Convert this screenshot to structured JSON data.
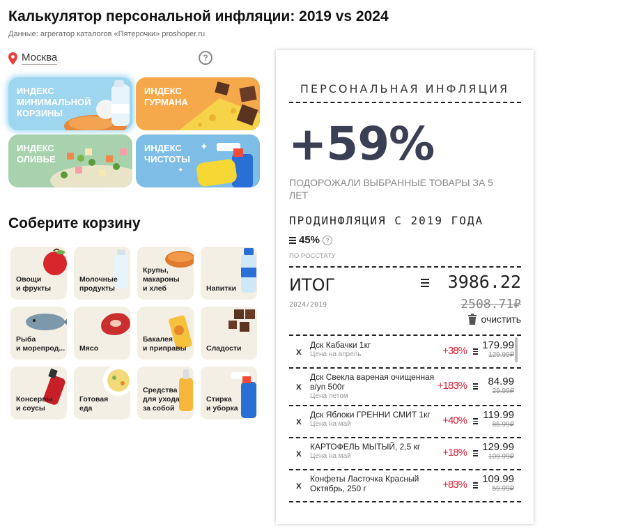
{
  "header": {
    "title": "Калькулятор персональной инфляции: 2019 vs 2024",
    "subtitle": "Данные: агрегатор каталогов «Пятерочки» proshoper.ru"
  },
  "location": {
    "city": "Москва",
    "help": "?"
  },
  "indexes": [
    {
      "label": "ИНДЕКС\nМИНИМАЛЬНОЙ\nКОРЗИНЫ",
      "color": "#9ed5ef"
    },
    {
      "label": "ИНДЕКС\nГУРМАНА",
      "color": "#f5a94a"
    },
    {
      "label": "ИНДЕКС\nОЛИВЬЕ",
      "color": "#a7d2ad"
    },
    {
      "label": "ИНДЕКС\nЧИСТОТЫ",
      "color": "#7dbde6"
    }
  ],
  "basket_title": "Соберите корзину",
  "categories": [
    "Овощи\nи фрукты",
    "Молочные\nпродукты",
    "Крупы,\nмакароны\nи хлеб",
    "Напитки",
    "Рыба\nи морепрод...",
    "Мясо",
    "Бакалея\nи приправы",
    "Сладости",
    "Консервы\nи соусы",
    "Готовая\nеда",
    "Средства\nдля ухода\nза собой",
    "Стирка\nи уборка"
  ],
  "receipt": {
    "heading": "ПЕРСОНАЛЬНАЯ ИНФЛЯЦИЯ",
    "inflation": "+59%",
    "description": "ПОДОРОЖАЛИ ВЫБРАННЫЕ ТОВАРЫ ЗА 5 ЛЕТ",
    "pro_title": "ПРОДИНФЛЯЦИЯ С 2019 ГОДА",
    "pro_value": "45%",
    "pro_help": "?",
    "pro_source": "ПО РОССТАТУ",
    "total_label": "ИТОГ",
    "total_period": "2024/2019",
    "total_new": "3986.22",
    "total_old": "2508.71₽",
    "clear_label": "очистить",
    "remove_symbol": "x",
    "items": [
      {
        "name": "Дск Кабачки 1кг",
        "note": "Цена на апрель",
        "pct": "+38%",
        "price": "179.99",
        "old": "129.99₽"
      },
      {
        "name": "Дск Свекла вареная очищенная в/уп 500г",
        "note": "Цена летом",
        "pct": "+183%",
        "price": "84.99",
        "old": "29.99₽"
      },
      {
        "name": "Дск Яблоки ГРЕННИ СМИТ 1кг",
        "note": "Цена на май",
        "pct": "+40%",
        "price": "119.99",
        "old": "85.99₽"
      },
      {
        "name": "КАРТОФЕЛЬ МЫТЫЙ, 2,5 кг",
        "note": "Цена на май",
        "pct": "+18%",
        "price": "129.99",
        "old": "109.99₽"
      },
      {
        "name": "Конфеты Ласточка Красный Октябрь, 250 г",
        "note": "",
        "pct": "+83%",
        "price": "109.99",
        "old": "59.99₽"
      }
    ]
  },
  "colors": {
    "accent_red": "#d8273b",
    "big_number": "#3a3f54"
  }
}
